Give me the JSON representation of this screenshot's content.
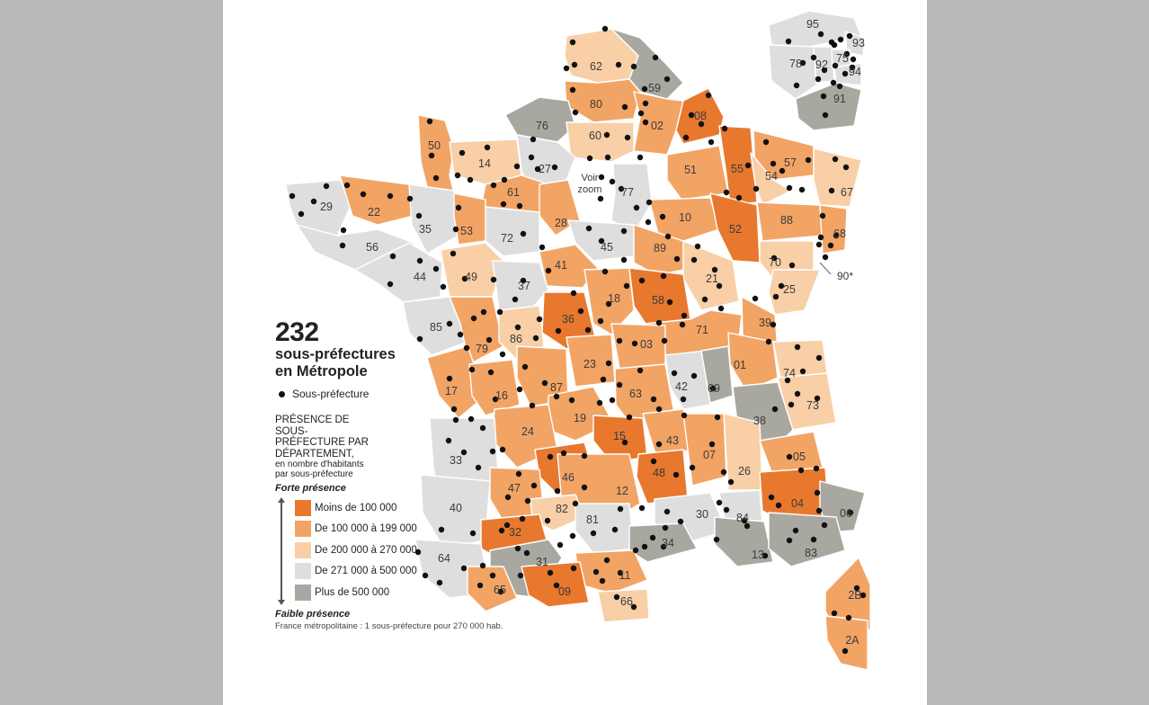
{
  "map": {
    "headline_number": "232",
    "headline_line1": "sous-préfectures",
    "headline_line2": "en Métropole",
    "dot_legend": "Sous-préfecture",
    "legend_title": "PRÉSENCE DE SOUS-PRÉFECTURE PAR DÉPARTEMENT,",
    "legend_subtitle": "en nombre d'habitants par sous-préfecture",
    "top_label": "Forte présence",
    "bottom_label": "Faible présence",
    "classes": [
      {
        "label": "Moins de 100 000",
        "color": "#e8782e"
      },
      {
        "label": "De 100 000 à 199 000",
        "color": "#f2a465"
      },
      {
        "label": "De 200 000 à 270 000",
        "color": "#f8cfa6"
      },
      {
        "label": "De 271 000 à 500 000",
        "color": "#dedede"
      },
      {
        "label": "Plus de 500 000",
        "color": "#a9a8a0"
      }
    ],
    "footnote": "France métropolitaine : 1 sous-préfecture pour 270 000 hab.",
    "zoom_label_1": "Voir",
    "zoom_label_2": "zoom",
    "territoire_label": "90*",
    "departments": [
      {
        "code": "62",
        "class": 2
      },
      {
        "code": "59",
        "class": 4
      },
      {
        "code": "80",
        "class": 1
      },
      {
        "code": "02",
        "class": 1
      },
      {
        "code": "08",
        "class": 0
      },
      {
        "code": "76",
        "class": 4
      },
      {
        "code": "60",
        "class": 2
      },
      {
        "code": "50",
        "class": 1
      },
      {
        "code": "14",
        "class": 2
      },
      {
        "code": "27",
        "class": 3
      },
      {
        "code": "95",
        "class": 3
      },
      {
        "code": "78",
        "class": 3
      },
      {
        "code": "92",
        "class": 3
      },
      {
        "code": "93",
        "class": 3
      },
      {
        "code": "75",
        "class": 3
      },
      {
        "code": "94",
        "class": 3
      },
      {
        "code": "91",
        "class": 4
      },
      {
        "code": "77",
        "class": 3
      },
      {
        "code": "51",
        "class": 1
      },
      {
        "code": "55",
        "class": 0
      },
      {
        "code": "57",
        "class": 1
      },
      {
        "code": "54",
        "class": 2
      },
      {
        "code": "67",
        "class": 2
      },
      {
        "code": "29",
        "class": 3
      },
      {
        "code": "22",
        "class": 1
      },
      {
        "code": "35",
        "class": 3
      },
      {
        "code": "56",
        "class": 3
      },
      {
        "code": "61",
        "class": 1
      },
      {
        "code": "28",
        "class": 1
      },
      {
        "code": "72",
        "class": 3
      },
      {
        "code": "53",
        "class": 1
      },
      {
        "code": "45",
        "class": 3
      },
      {
        "code": "10",
        "class": 1
      },
      {
        "code": "52",
        "class": 0
      },
      {
        "code": "88",
        "class": 1
      },
      {
        "code": "68",
        "class": 1
      },
      {
        "code": "44",
        "class": 3
      },
      {
        "code": "49",
        "class": 2
      },
      {
        "code": "41",
        "class": 1
      },
      {
        "code": "37",
        "class": 3
      },
      {
        "code": "89",
        "class": 1
      },
      {
        "code": "21",
        "class": 2
      },
      {
        "code": "70",
        "class": 2
      },
      {
        "code": "25",
        "class": 2
      },
      {
        "code": "85",
        "class": 3
      },
      {
        "code": "79",
        "class": 1
      },
      {
        "code": "86",
        "class": 2
      },
      {
        "code": "36",
        "class": 0
      },
      {
        "code": "18",
        "class": 1
      },
      {
        "code": "58",
        "class": 0
      },
      {
        "code": "71",
        "class": 1
      },
      {
        "code": "39",
        "class": 1
      },
      {
        "code": "17",
        "class": 1
      },
      {
        "code": "16",
        "class": 1
      },
      {
        "code": "87",
        "class": 1
      },
      {
        "code": "23",
        "class": 1
      },
      {
        "code": "03",
        "class": 1
      },
      {
        "code": "63",
        "class": 1
      },
      {
        "code": "42",
        "class": 3
      },
      {
        "code": "69",
        "class": 4
      },
      {
        "code": "01",
        "class": 1
      },
      {
        "code": "74",
        "class": 2
      },
      {
        "code": "73",
        "class": 2
      },
      {
        "code": "38",
        "class": 4
      },
      {
        "code": "19",
        "class": 1
      },
      {
        "code": "24",
        "class": 1
      },
      {
        "code": "15",
        "class": 0
      },
      {
        "code": "43",
        "class": 1
      },
      {
        "code": "33",
        "class": 3
      },
      {
        "code": "46",
        "class": 0
      },
      {
        "code": "48",
        "class": 0
      },
      {
        "code": "07",
        "class": 1
      },
      {
        "code": "26",
        "class": 2
      },
      {
        "code": "05",
        "class": 1
      },
      {
        "code": "47",
        "class": 1
      },
      {
        "code": "12",
        "class": 1
      },
      {
        "code": "40",
        "class": 3
      },
      {
        "code": "82",
        "class": 2
      },
      {
        "code": "81",
        "class": 3
      },
      {
        "code": "30",
        "class": 3
      },
      {
        "code": "84",
        "class": 3
      },
      {
        "code": "04",
        "class": 0
      },
      {
        "code": "06",
        "class": 4
      },
      {
        "code": "32",
        "class": 0
      },
      {
        "code": "34",
        "class": 4
      },
      {
        "code": "13",
        "class": 4
      },
      {
        "code": "83",
        "class": 4
      },
      {
        "code": "64",
        "class": 3
      },
      {
        "code": "31",
        "class": 4
      },
      {
        "code": "11",
        "class": 1
      },
      {
        "code": "65",
        "class": 1
      },
      {
        "code": "09",
        "class": 0
      },
      {
        "code": "66",
        "class": 2
      },
      {
        "code": "2B",
        "class": 1
      },
      {
        "code": "2A",
        "class": 1
      }
    ]
  }
}
